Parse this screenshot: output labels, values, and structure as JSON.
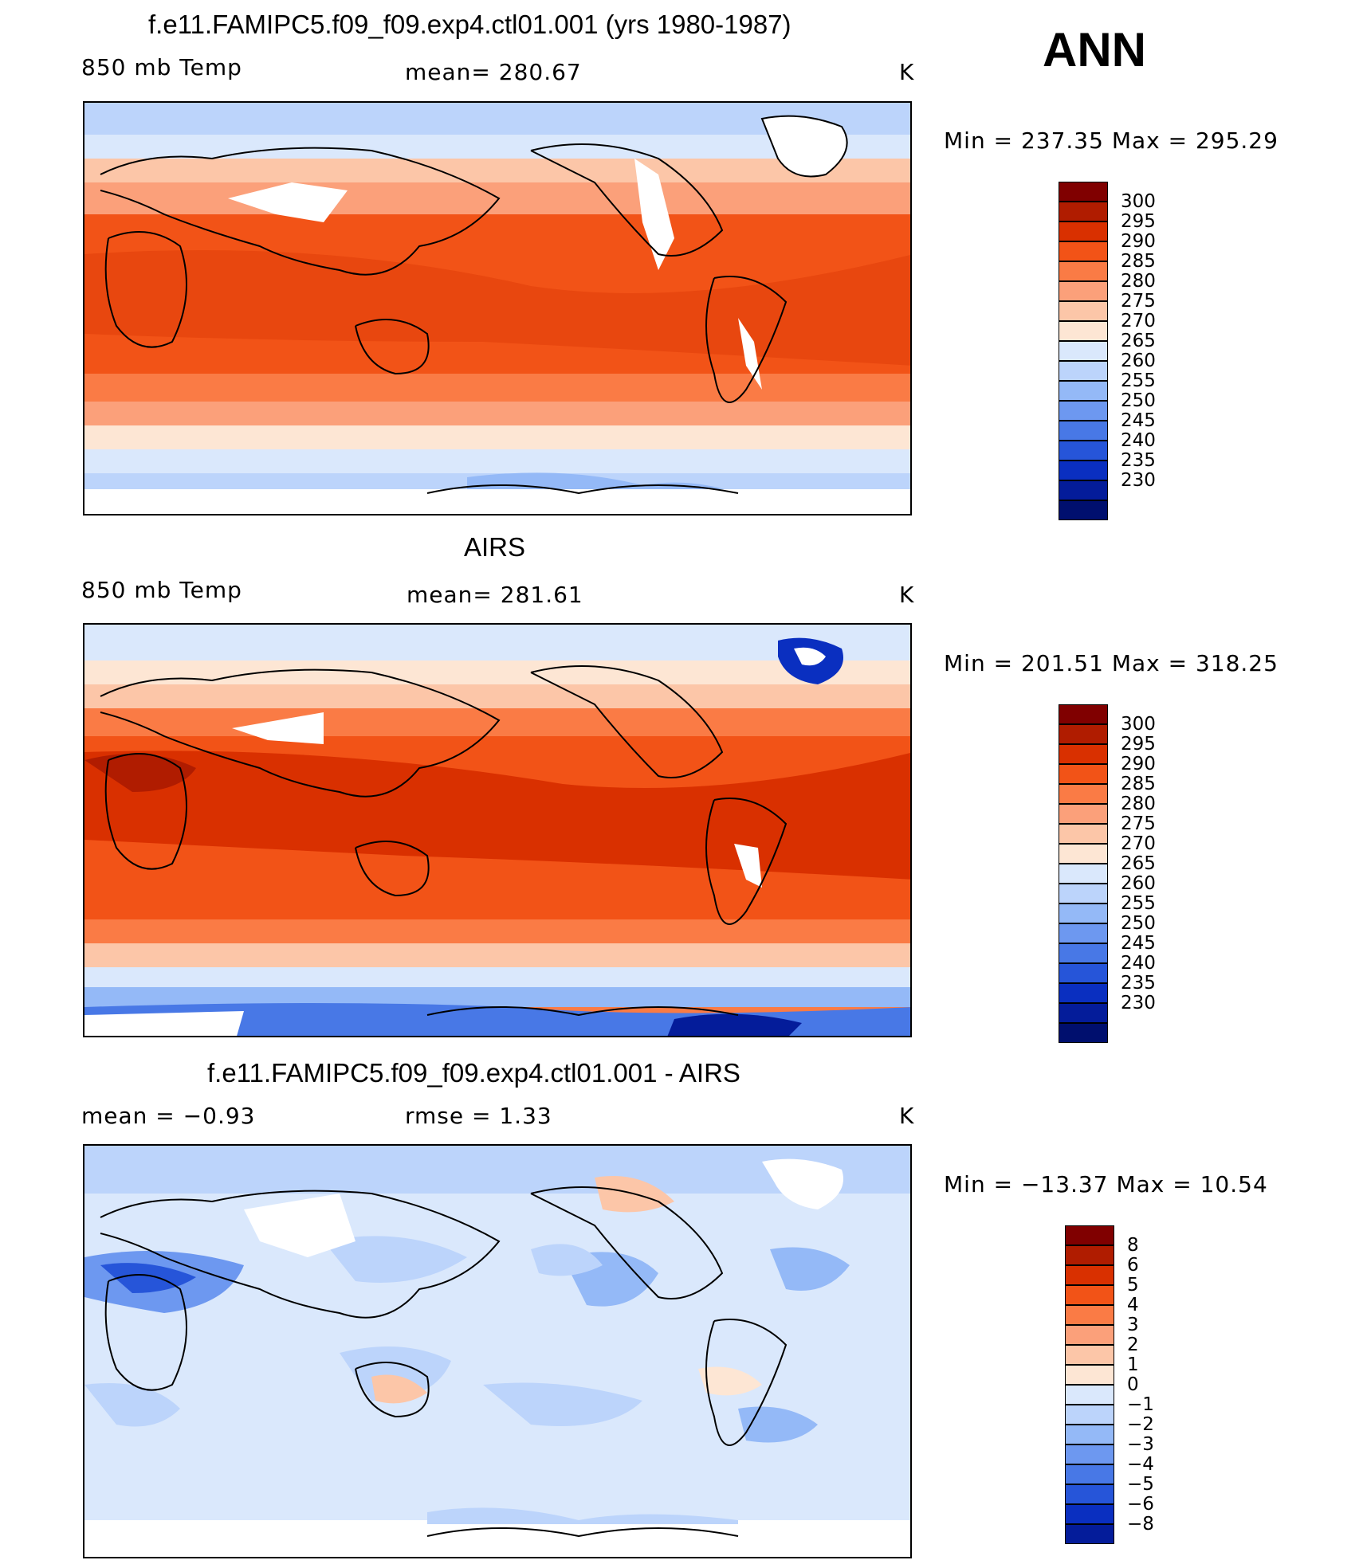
{
  "season": "ANN",
  "units": "K",
  "panels": [
    {
      "title": "f.e11.FAMIPC5.f09_f09.exp4.ctl01.001 (yrs 1980-1987)",
      "left_label": "850 mb Temp",
      "center_label": "mean=  280.67",
      "right_label": "K",
      "min_max": "Min  =  237.35  Max  =  295.29",
      "colorbar_labels": [
        "300",
        "295",
        "290",
        "285",
        "280",
        "275",
        "270",
        "265",
        "260",
        "255",
        "250",
        "245",
        "240",
        "235",
        "230"
      ]
    },
    {
      "title": "AIRS",
      "left_label": "850 mb Temp",
      "center_label": "mean=  281.61",
      "right_label": "K",
      "min_max": "Min  =  201.51  Max  =  318.25",
      "colorbar_labels": [
        "300",
        "295",
        "290",
        "285",
        "280",
        "275",
        "270",
        "265",
        "260",
        "255",
        "250",
        "245",
        "240",
        "235",
        "230"
      ]
    },
    {
      "title": "f.e11.FAMIPC5.f09_f09.exp4.ctl01.001 - AIRS",
      "left_label": "mean  =     −0.93",
      "center_label": "rmse  =      1.33",
      "right_label": "K",
      "min_max": "Min  =  −13.37  Max  =     10.54",
      "colorbar_labels": [
        "8",
        "6",
        "5",
        "4",
        "3",
        "2",
        "1",
        "0",
        "−1",
        "−2",
        "−3",
        "−4",
        "−5",
        "−6",
        "−8"
      ]
    }
  ],
  "colors": {
    "temp_scale": [
      "#800000",
      "#b01c00",
      "#d93000",
      "#f25317",
      "#fa7b45",
      "#fba07a",
      "#fcc6a8",
      "#fde6d4",
      "#dae8fc",
      "#bcd4fb",
      "#94b9f7",
      "#6d98f0",
      "#4878e6",
      "#2655d9",
      "#0a2fc0",
      "#041c9a",
      "#000f6e"
    ],
    "diff_scale": [
      "#800000",
      "#b01c00",
      "#d93000",
      "#f25317",
      "#fa7b45",
      "#fba07a",
      "#fcc6a8",
      "#fde6d4",
      "#dae8fc",
      "#bcd4fb",
      "#94b9f7",
      "#6d98f0",
      "#4878e6",
      "#2655d9",
      "#0a2fc0",
      "#041c9a"
    ]
  }
}
